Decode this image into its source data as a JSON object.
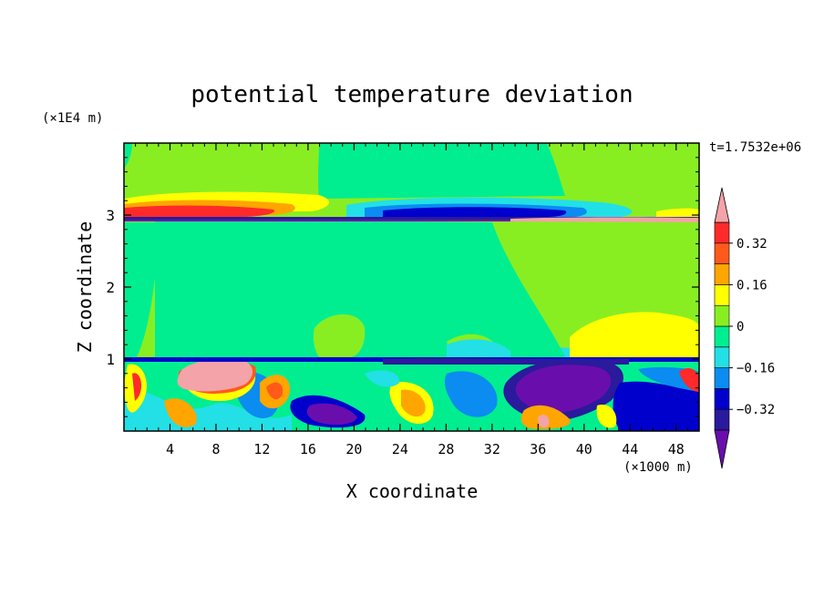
{
  "chart_data": {
    "type": "heatmap",
    "title": "potential temperature deviation",
    "time_label": "t=1.7532e+06",
    "xlabel": "X coordinate",
    "ylabel": "Z coordinate",
    "x_unit": "(×1000 m)",
    "y_unit": "(×1E4 m)",
    "xlim": [
      0,
      50
    ],
    "ylim": [
      0,
      4
    ],
    "x_ticks": [
      4,
      8,
      12,
      16,
      20,
      24,
      28,
      32,
      36,
      40,
      44,
      48
    ],
    "y_ticks": [
      1,
      2,
      3
    ],
    "colorbar": {
      "levels": [
        -0.4,
        -0.32,
        -0.24,
        -0.16,
        -0.08,
        0,
        0.08,
        0.16,
        0.24,
        0.32,
        0.4
      ],
      "labels": [
        "0.32",
        "0.16",
        "0",
        "−0.16",
        "−0.32"
      ],
      "label_values": [
        0.32,
        0.16,
        0,
        -0.16,
        -0.32
      ],
      "colors": [
        "#6a0dad",
        "#2a1a9c",
        "#0000cd",
        "#0a8cf0",
        "#22e0e6",
        "#00ee90",
        "#88ee22",
        "#ffff00",
        "#ffa500",
        "#ff5a1a",
        "#ff2a2a",
        "#f4a3a8"
      ],
      "extend": "both"
    },
    "regions": [
      {
        "x": [
          0,
          50
        ],
        "y": [
          1.0,
          2.88
        ],
        "value": 0.04
      },
      {
        "x": [
          0,
          50
        ],
        "y": [
          3.1,
          4.0
        ],
        "value": 0.1
      },
      {
        "x": [
          17,
          36
        ],
        "y": [
          3.2,
          4.0
        ],
        "value": 0.04
      },
      {
        "x": [
          1,
          14
        ],
        "y": [
          3.0,
          3.12
        ],
        "value": 0.3
      },
      {
        "x": [
          28,
          42
        ],
        "y": [
          2.97,
          3.08
        ],
        "value": -0.3
      },
      {
        "x": [
          0,
          48
        ],
        "y": [
          2.88,
          2.93
        ],
        "value": -0.36
      },
      {
        "x": [
          36,
          50
        ],
        "y": [
          1.0,
          1.45
        ],
        "value": 0.12
      },
      {
        "x": [
          18,
          24
        ],
        "y": [
          1.0,
          1.5
        ],
        "value": 0.1
      },
      {
        "x": [
          26,
          34
        ],
        "y": [
          1.0,
          1.35
        ],
        "value": -0.04
      },
      {
        "x": [
          0,
          50
        ],
        "y": [
          0.92,
          1.0
        ],
        "value": -0.3
      },
      {
        "x": [
          5,
          11
        ],
        "y": [
          0.55,
          0.95
        ],
        "value": 0.44
      },
      {
        "x": [
          34,
          42
        ],
        "y": [
          0.5,
          0.95
        ],
        "value": -0.4
      },
      {
        "x": [
          16,
          22
        ],
        "y": [
          0.1,
          0.35
        ],
        "value": -0.4
      },
      {
        "x": [
          24,
          28
        ],
        "y": [
          0.25,
          0.5
        ],
        "value": 0.26
      },
      {
        "x": [
          12,
          16
        ],
        "y": [
          0.5,
          0.8
        ],
        "value": 0.26
      },
      {
        "x": [
          43,
          50
        ],
        "y": [
          0.0,
          0.4
        ],
        "value": -0.3
      }
    ]
  }
}
